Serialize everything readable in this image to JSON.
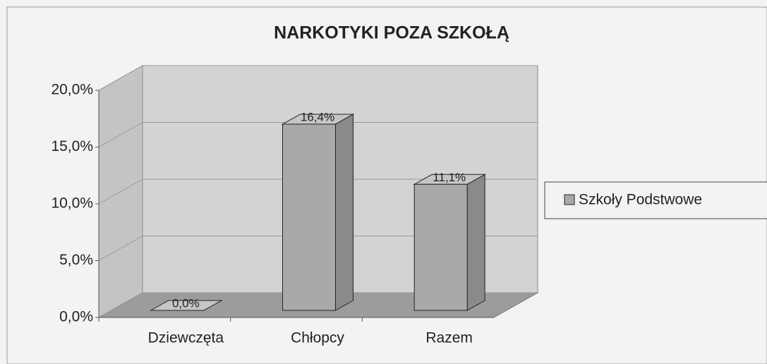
{
  "chart_data": {
    "type": "bar3d",
    "title": "NARKOTYKI POZA SZKOŁĄ",
    "categories": [
      "Dziewczęta",
      "Chłopcy",
      "Razem"
    ],
    "series": [
      {
        "name": "Szkoły Podstwowe",
        "color": "#a9a9a9",
        "values": [
          0,
          16.4,
          11.1
        ],
        "value_labels": [
          "0,0%",
          "16,4%",
          "11,1%"
        ]
      }
    ],
    "ylim": [
      0,
      20
    ],
    "yticks": [
      {
        "value": 0,
        "label": "0,0%"
      },
      {
        "value": 5,
        "label": "5,0%"
      },
      {
        "value": 10,
        "label": "10,0%"
      },
      {
        "value": 15,
        "label": "15,0%"
      },
      {
        "value": 20,
        "label": "20,0%"
      }
    ],
    "grid": true,
    "legend": "right"
  }
}
